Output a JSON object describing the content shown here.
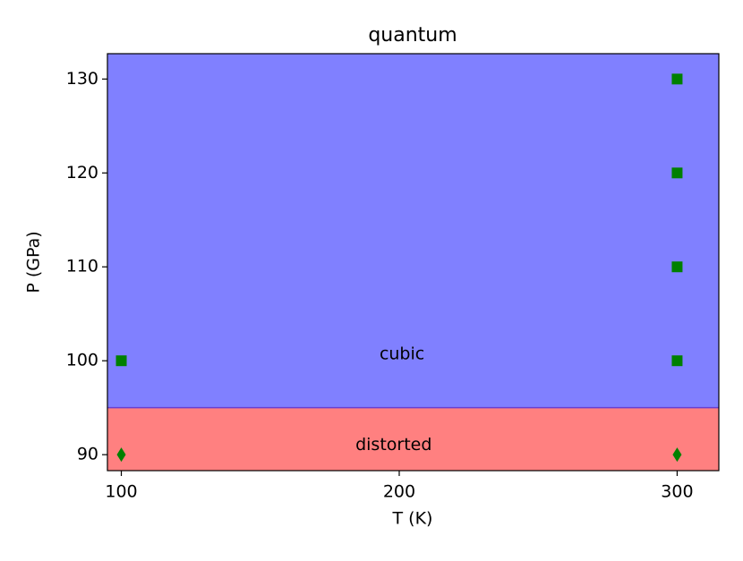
{
  "chart_data": {
    "type": "scatter",
    "title": "quantum",
    "x_label": "T (K)",
    "y_label": "P (GPa)",
    "xlim": [
      95,
      315
    ],
    "ylim": [
      88.3,
      132.7
    ],
    "xticks": [
      100,
      200,
      300
    ],
    "yticks": [
      90,
      100,
      110,
      120,
      130
    ],
    "regions": [
      {
        "label": "distorted",
        "color": "#ff8080",
        "ylim": [
          88.3,
          95
        ],
        "label_x": 198,
        "label_y": 91
      },
      {
        "label": "cubic",
        "color": "#8080ff",
        "ylim": [
          95,
          132.7
        ],
        "label_x": 201,
        "label_y": 100.7
      }
    ],
    "boundary_color": "#6a3fd0",
    "series": [
      {
        "marker": "square",
        "color": "#008000",
        "x": [
          100,
          300,
          300,
          300,
          300
        ],
        "values": [
          100,
          100,
          110,
          120,
          130
        ]
      },
      {
        "marker": "diamond",
        "color": "#008000",
        "x": [
          100,
          300
        ],
        "values": [
          90,
          90
        ]
      }
    ]
  }
}
